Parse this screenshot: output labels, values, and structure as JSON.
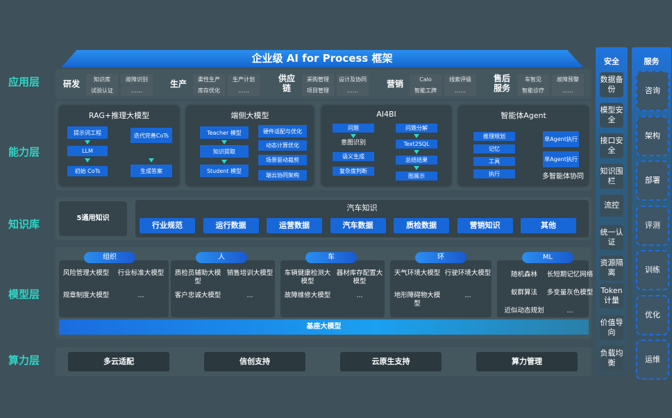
{
  "title": "企业级 AI for Process 框架",
  "layers": [
    "应用层",
    "能力层",
    "知识库",
    "模型层",
    "算力层"
  ],
  "app": [
    {
      "name": "研发",
      "items": [
        "知识库",
        "试验认证",
        "故障识别",
        "……"
      ]
    },
    {
      "name": "生产",
      "items": [
        "柔性生产",
        "库存优化",
        "生产计划",
        "……"
      ]
    },
    {
      "name": "供应链",
      "items": [
        "采购管理",
        "项目管理",
        "设计及协同",
        "……"
      ]
    },
    {
      "name": "营销",
      "items": [
        "Calo",
        "智能工牌",
        "线索评级",
        "……"
      ]
    },
    {
      "name": "售后服务",
      "items": [
        "车智见",
        "智能诊疗",
        "故障预警",
        "……"
      ]
    }
  ],
  "capability": {
    "rag": {
      "title": "RAG+推理大模型",
      "items": [
        "提示词工程",
        "LLM",
        "初始 CoTs",
        "迭代完善CoTs",
        "生成答案"
      ]
    },
    "edge": {
      "title": "端侧大模型",
      "items": [
        "Teacher 模型",
        "知识提取",
        "Student 模型",
        "硬件适配与优化",
        "动态计算优化",
        "场景驱动裁剪",
        "端云协同架构"
      ]
    },
    "ai4bi": {
      "title": "AI4BI",
      "items": [
        "问题",
        "意图识别",
        "语义生成",
        "复杂度判断",
        "问题分解",
        "Text2SQL",
        "总结结果",
        "图展示"
      ]
    },
    "agent": {
      "title": "智能体Agent",
      "items": [
        "推理规划",
        "记忆",
        "工具",
        "执行",
        "单Agent执行",
        "单Agent执行",
        "多智能体协同"
      ]
    }
  },
  "knowledge": {
    "general": "5通用知识",
    "auto_title": "汽车知识",
    "items": [
      "行业规范",
      "运行数据",
      "运营数据",
      "汽车数据",
      "质检数据",
      "营销知识",
      "其他"
    ]
  },
  "models": [
    {
      "name": "组织",
      "items": [
        "风险管理大模型",
        "行业标准大模型",
        "规章制度大模型",
        "..."
      ]
    },
    {
      "name": "人",
      "items": [
        "质检员辅助大模型",
        "销售培训大模型",
        "客户忠诚大模型",
        "..."
      ]
    },
    {
      "name": "车",
      "items": [
        "车辆健康检测大模型",
        "器材库存配置大模型",
        "故障维修大模型",
        "..."
      ]
    },
    {
      "name": "环",
      "items": [
        "天气环境大模型",
        "行驶环境大模型",
        "地形障碍物大模型",
        "..."
      ]
    },
    {
      "name": "ML",
      "items": [
        "随机森林",
        "长短期记忆网络",
        "蚁群算法",
        "多变量灰色模型",
        "近似动态规划",
        "..."
      ]
    }
  ],
  "base_model": "基座大模型",
  "compute": [
    "多云适配",
    "信创支持",
    "云原生支持",
    "算力管理"
  ],
  "security": {
    "title": "安全",
    "items": [
      "数据备份",
      "模型安全",
      "接口安全",
      "知识围栏",
      "流控",
      "统一认证",
      "资源隔离",
      "Token计量",
      "价值导向",
      "负载均衡"
    ]
  },
  "service": {
    "title": "服务",
    "items": [
      "咨询",
      "架构",
      "部署",
      "评测",
      "训练",
      "优化",
      "运维"
    ]
  }
}
